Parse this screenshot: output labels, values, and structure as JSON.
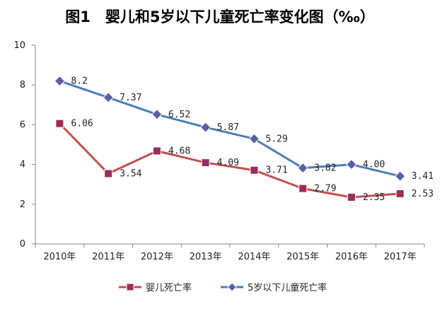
{
  "chart_data": {
    "type": "line",
    "title": "图1　婴儿和5岁以下儿童死亡率变化图（‰）",
    "categories": [
      "2010年",
      "2011年",
      "2012年",
      "2013年",
      "2014年",
      "2015年",
      "2016年",
      "2017年"
    ],
    "ylim": [
      0,
      10
    ],
    "yticks": [
      0,
      2,
      4,
      6,
      8,
      10
    ],
    "grid": false,
    "legend_position": "bottom",
    "series": [
      {
        "name": "婴儿死亡率",
        "color": "#c0504d",
        "marker_color": "#9b2d5c",
        "marker": "square",
        "values": [
          6.06,
          3.54,
          4.68,
          4.09,
          3.71,
          2.79,
          2.35,
          2.53
        ],
        "labels": [
          "6.06",
          "3.54",
          "4.68",
          "4.09",
          "3.71",
          "2.79",
          "2.35",
          "2.53"
        ]
      },
      {
        "name": "5岁以下儿童死亡率",
        "color": "#4a7ebb",
        "marker_color": "#5b5ea6",
        "marker": "diamond",
        "values": [
          8.2,
          7.37,
          6.52,
          5.87,
          5.29,
          3.82,
          4.0,
          3.41
        ],
        "labels": [
          "8.2",
          "7.37",
          "6.52",
          "5.87",
          "5.29",
          "3.82",
          "4.00",
          "3.41"
        ]
      }
    ]
  }
}
